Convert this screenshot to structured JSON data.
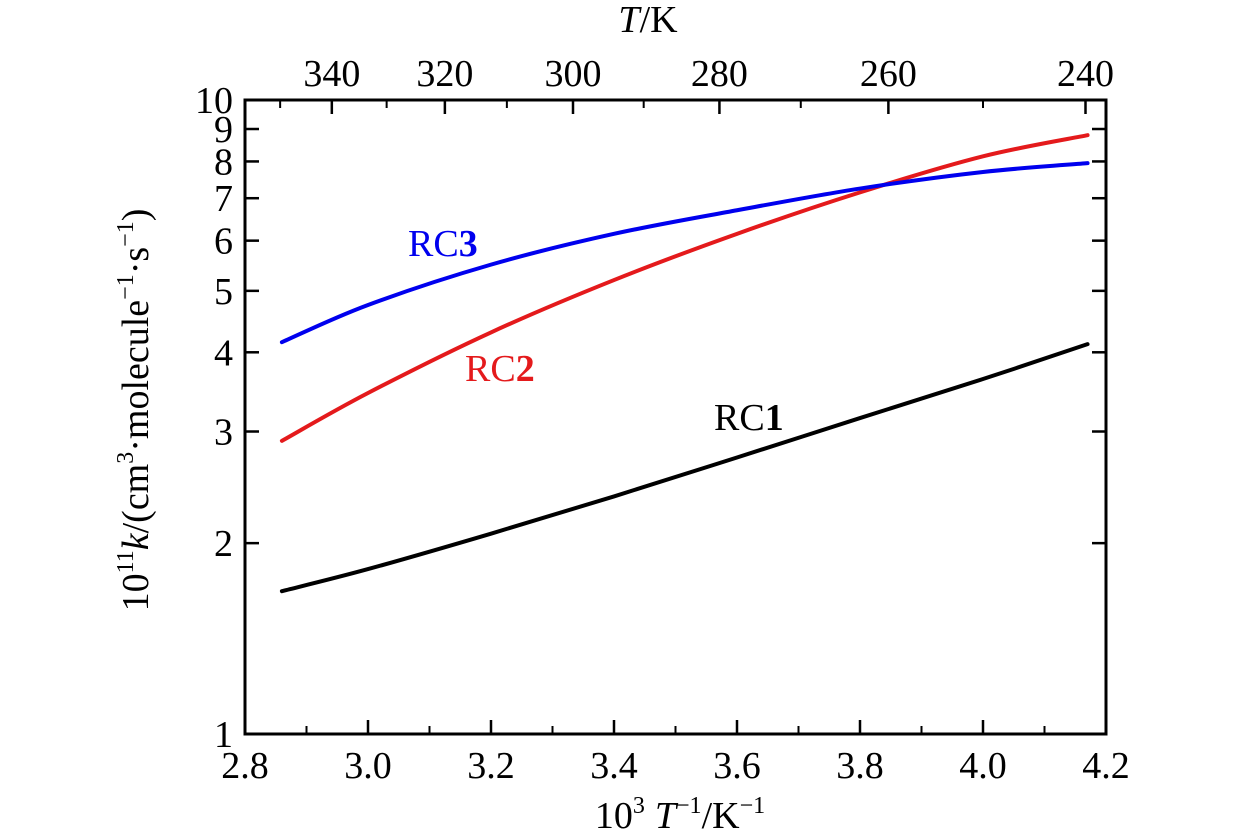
{
  "chart_data": {
    "type": "line",
    "title": "",
    "xlabel": {
      "base": "10",
      "base_sup": "3",
      "var": "T",
      "var_sup": "−1",
      "unit": "/K",
      "unit_sup": "−1"
    },
    "ylabel": {
      "prefix": "10",
      "prefix_sup": "11",
      "var": "k",
      "unit_open": "/(cm",
      "unit_sup1": "3",
      "unit_mid": "·molecule",
      "unit_sup2": "−1",
      "unit_mid2": "·s",
      "unit_sup3": "−1",
      "unit_close": ")"
    },
    "top_xlabel": {
      "var": "T",
      "unit": "/K"
    },
    "xlim": [
      2.8,
      4.2
    ],
    "ylim": [
      1,
      10
    ],
    "yscale": "log",
    "x_ticks": [
      "2.8",
      "3.0",
      "3.2",
      "3.4",
      "3.6",
      "3.8",
      "4.0",
      "4.2"
    ],
    "y_ticks": [
      "1",
      "2",
      "3",
      "4",
      "5",
      "6",
      "7",
      "8",
      "9",
      "10"
    ],
    "top_ticks": [
      "340",
      "320",
      "300",
      "280",
      "260",
      "240"
    ],
    "series": [
      {
        "name": "RC1",
        "label_text": "RC",
        "label_num": "1",
        "color": "#000000",
        "x": [
          2.86,
          3.0,
          3.2,
          3.4,
          3.6,
          3.8,
          4.0,
          4.17
        ],
        "y": [
          1.68,
          1.82,
          2.07,
          2.37,
          2.73,
          3.15,
          3.63,
          4.12
        ]
      },
      {
        "name": "RC2",
        "label_text": "RC",
        "label_num": "2",
        "color": "#e41a1c",
        "x": [
          2.86,
          3.0,
          3.2,
          3.4,
          3.6,
          3.8,
          4.0,
          4.17
        ],
        "y": [
          2.9,
          3.45,
          4.3,
          5.2,
          6.15,
          7.15,
          8.15,
          8.8
        ]
      },
      {
        "name": "RC3",
        "label_text": "RC",
        "label_num": "3",
        "color": "#0000ee",
        "x": [
          2.86,
          3.0,
          3.2,
          3.4,
          3.6,
          3.8,
          4.0,
          4.17
        ],
        "y": [
          4.15,
          4.75,
          5.5,
          6.15,
          6.7,
          7.25,
          7.7,
          7.95
        ]
      }
    ]
  }
}
